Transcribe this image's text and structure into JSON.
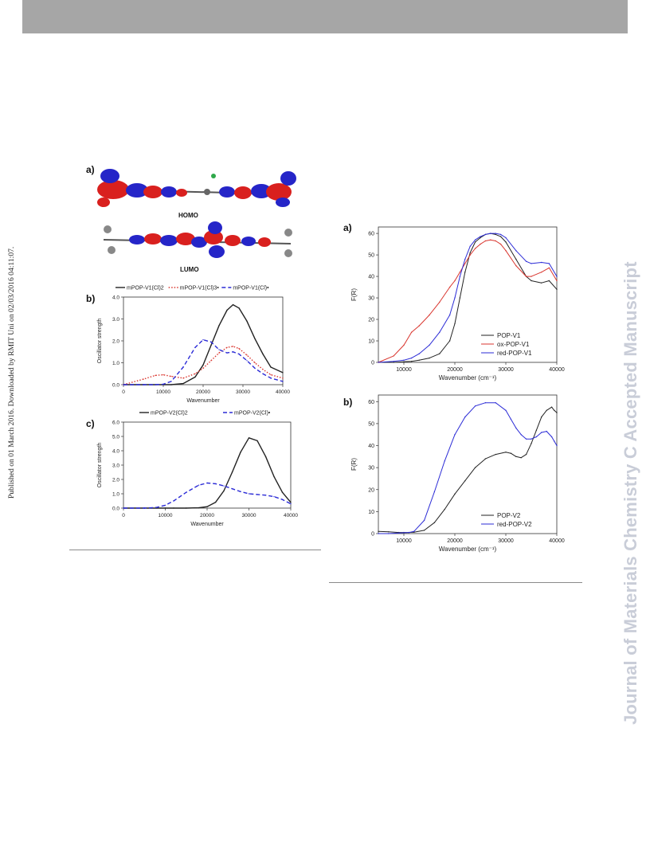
{
  "header": {
    "bar_color": "#a6a6a6"
  },
  "sidebar_text": "Published on 01 March 2016. Downloaded by RMIT Uni on 02/03/2016 04:11:07.",
  "watermark": "Journal of Materials Chemistry C Accepted Manuscript",
  "left_figure": {
    "panel_a": {
      "label": "a)",
      "homo_label": "HOMO",
      "lumo_label": "LUMO"
    },
    "panel_b": {
      "label": "b)"
    },
    "panel_c": {
      "label": "c)"
    }
  },
  "right_figure": {
    "panel_a": {
      "label": "a)"
    },
    "panel_b": {
      "label": "b)"
    }
  },
  "colors": {
    "black": "#222222",
    "red": "#d9362f",
    "blue": "#2b2bd6",
    "homo_red": "#d9201e",
    "homo_blue": "#2525c8"
  },
  "chart_data": [
    {
      "id": "left_b",
      "type": "line",
      "xlabel": "Wavenumber",
      "ylabel": "Oscillator strength",
      "xlim": [
        0,
        40000
      ],
      "ylim": [
        0,
        4.0
      ],
      "xticks": [
        "0",
        "10000",
        "20000",
        "30000",
        "40000"
      ],
      "yticks": [
        "0.0",
        "1.0",
        "2.0",
        "3.0",
        "4.0"
      ],
      "x": [
        0,
        5000,
        8000,
        10000,
        12000,
        15000,
        18000,
        20000,
        22000,
        24000,
        26000,
        27500,
        29000,
        31000,
        33000,
        35000,
        37000,
        40000
      ],
      "series": [
        {
          "name": "mPOP-V1(Cl)2",
          "color": "#222222",
          "dash": "solid",
          "values": [
            0,
            0,
            0,
            0,
            0,
            0.05,
            0.35,
            0.9,
            1.8,
            2.7,
            3.4,
            3.65,
            3.5,
            2.9,
            2.1,
            1.4,
            0.8,
            0.55
          ]
        },
        {
          "name": "mPOP-V1(Cl)3•",
          "color": "#d9362f",
          "dash": "dot",
          "values": [
            0,
            0.25,
            0.42,
            0.45,
            0.38,
            0.3,
            0.5,
            0.75,
            1.1,
            1.45,
            1.7,
            1.75,
            1.65,
            1.35,
            1.0,
            0.7,
            0.45,
            0.3
          ]
        },
        {
          "name": "mPOP-V1(Cl)•",
          "color": "#2b2bd6",
          "dash": "dash",
          "values": [
            0,
            0,
            0,
            0.02,
            0.15,
            0.8,
            1.7,
            2.05,
            1.95,
            1.6,
            1.45,
            1.5,
            1.4,
            1.1,
            0.75,
            0.5,
            0.3,
            0.15
          ]
        }
      ]
    },
    {
      "id": "left_c",
      "type": "line",
      "xlabel": "Wavenumber",
      "ylabel": "Oscillator strength",
      "xlim": [
        0,
        40000
      ],
      "ylim": [
        0,
        6.0
      ],
      "xticks": [
        "0",
        "10000",
        "20000",
        "30000",
        "40000"
      ],
      "yticks": [
        "0.0",
        "1.0",
        "2.0",
        "3.0",
        "4.0",
        "5.0",
        "6.0"
      ],
      "x": [
        0,
        5000,
        8000,
        10000,
        12000,
        15000,
        18000,
        20000,
        22000,
        24000,
        26000,
        28000,
        30000,
        32000,
        34000,
        36000,
        38000,
        40000
      ],
      "series": [
        {
          "name": "mPOP-V2(Cl)2",
          "color": "#222222",
          "dash": "solid",
          "values": [
            0,
            0,
            0,
            0,
            0,
            0,
            0.02,
            0.1,
            0.4,
            1.2,
            2.5,
            3.9,
            4.9,
            4.7,
            3.6,
            2.2,
            1.1,
            0.4
          ]
        },
        {
          "name": "mPOP-V2(Cl)•",
          "color": "#2b2bd6",
          "dash": "dash",
          "values": [
            0,
            0,
            0.05,
            0.2,
            0.5,
            1.1,
            1.6,
            1.75,
            1.7,
            1.55,
            1.35,
            1.15,
            1.0,
            0.95,
            0.9,
            0.8,
            0.6,
            0.3
          ]
        }
      ]
    },
    {
      "id": "right_a",
      "type": "line",
      "xlabel": "Wavenumber (cm⁻¹)",
      "ylabel": "F(R)",
      "xlim": [
        5000,
        40000
      ],
      "ylim": [
        0,
        63
      ],
      "xticks": [
        "10000",
        "20000",
        "30000",
        "40000"
      ],
      "yticks": [
        "0",
        "10",
        "20",
        "30",
        "40",
        "50",
        "60"
      ],
      "x": [
        5000,
        8000,
        10000,
        11500,
        13000,
        15000,
        17000,
        19000,
        20000,
        21000,
        22000,
        23000,
        24000,
        25000,
        26000,
        27000,
        28000,
        29000,
        30000,
        32000,
        34000,
        35000,
        37000,
        38500,
        40000
      ],
      "series": [
        {
          "name": "POP-V1",
          "color": "#222222",
          "dash": "solid",
          "values": [
            0,
            0,
            0.3,
            0.5,
            1,
            2,
            4,
            10,
            18,
            30,
            42,
            51,
            56,
            58,
            59.5,
            60,
            59.5,
            58.5,
            56,
            48,
            40,
            38,
            37,
            38,
            34
          ]
        },
        {
          "name": "ox-POP-V1",
          "color": "#d9362f",
          "dash": "solid",
          "values": [
            0,
            3,
            8,
            14,
            17,
            22,
            28,
            35,
            38,
            42,
            46,
            50,
            53,
            55,
            56.5,
            57,
            56.5,
            55,
            52,
            45,
            40,
            40,
            42,
            44,
            38
          ]
        },
        {
          "name": "red-POP-V1",
          "color": "#2b2bd6",
          "dash": "solid",
          "values": [
            0,
            0.5,
            1,
            2,
            4,
            8,
            14,
            22,
            30,
            40,
            48,
            54,
            57,
            58.5,
            59.5,
            60,
            60,
            59.5,
            58,
            52,
            47,
            46,
            46.5,
            46,
            40
          ]
        }
      ]
    },
    {
      "id": "right_b",
      "type": "line",
      "xlabel": "Wavenumber (cm⁻¹)",
      "ylabel": "F(R)",
      "xlim": [
        5000,
        40000
      ],
      "ylim": [
        0,
        63
      ],
      "xticks": [
        "10000",
        "20000",
        "30000",
        "40000"
      ],
      "yticks": [
        "0",
        "10",
        "20",
        "30",
        "40",
        "50",
        "60"
      ],
      "x": [
        5000,
        7000,
        9000,
        10000,
        11000,
        12000,
        14000,
        16000,
        18000,
        20000,
        22000,
        24000,
        26000,
        28000,
        30000,
        31000,
        32000,
        33000,
        34000,
        35000,
        36000,
        37000,
        38000,
        39000,
        39500,
        40000
      ],
      "series": [
        {
          "name": "POP-V2",
          "color": "#222222",
          "dash": "solid",
          "values": [
            1,
            0.8,
            0.5,
            0.5,
            0.5,
            0.6,
            1.5,
            5,
            11,
            18,
            24,
            30,
            34,
            36,
            37,
            36.5,
            35,
            34.5,
            36,
            41,
            47,
            53,
            56,
            57.5,
            56,
            55
          ]
        },
        {
          "name": "red-POP-V2",
          "color": "#2b2bd6",
          "dash": "solid",
          "values": [
            0,
            0,
            0.3,
            0.4,
            0.5,
            1,
            6,
            19,
            33,
            45,
            53,
            58,
            59.5,
            59.5,
            56,
            52,
            48,
            45,
            43,
            43,
            44,
            46,
            46.5,
            44,
            42,
            40
          ]
        }
      ]
    }
  ]
}
